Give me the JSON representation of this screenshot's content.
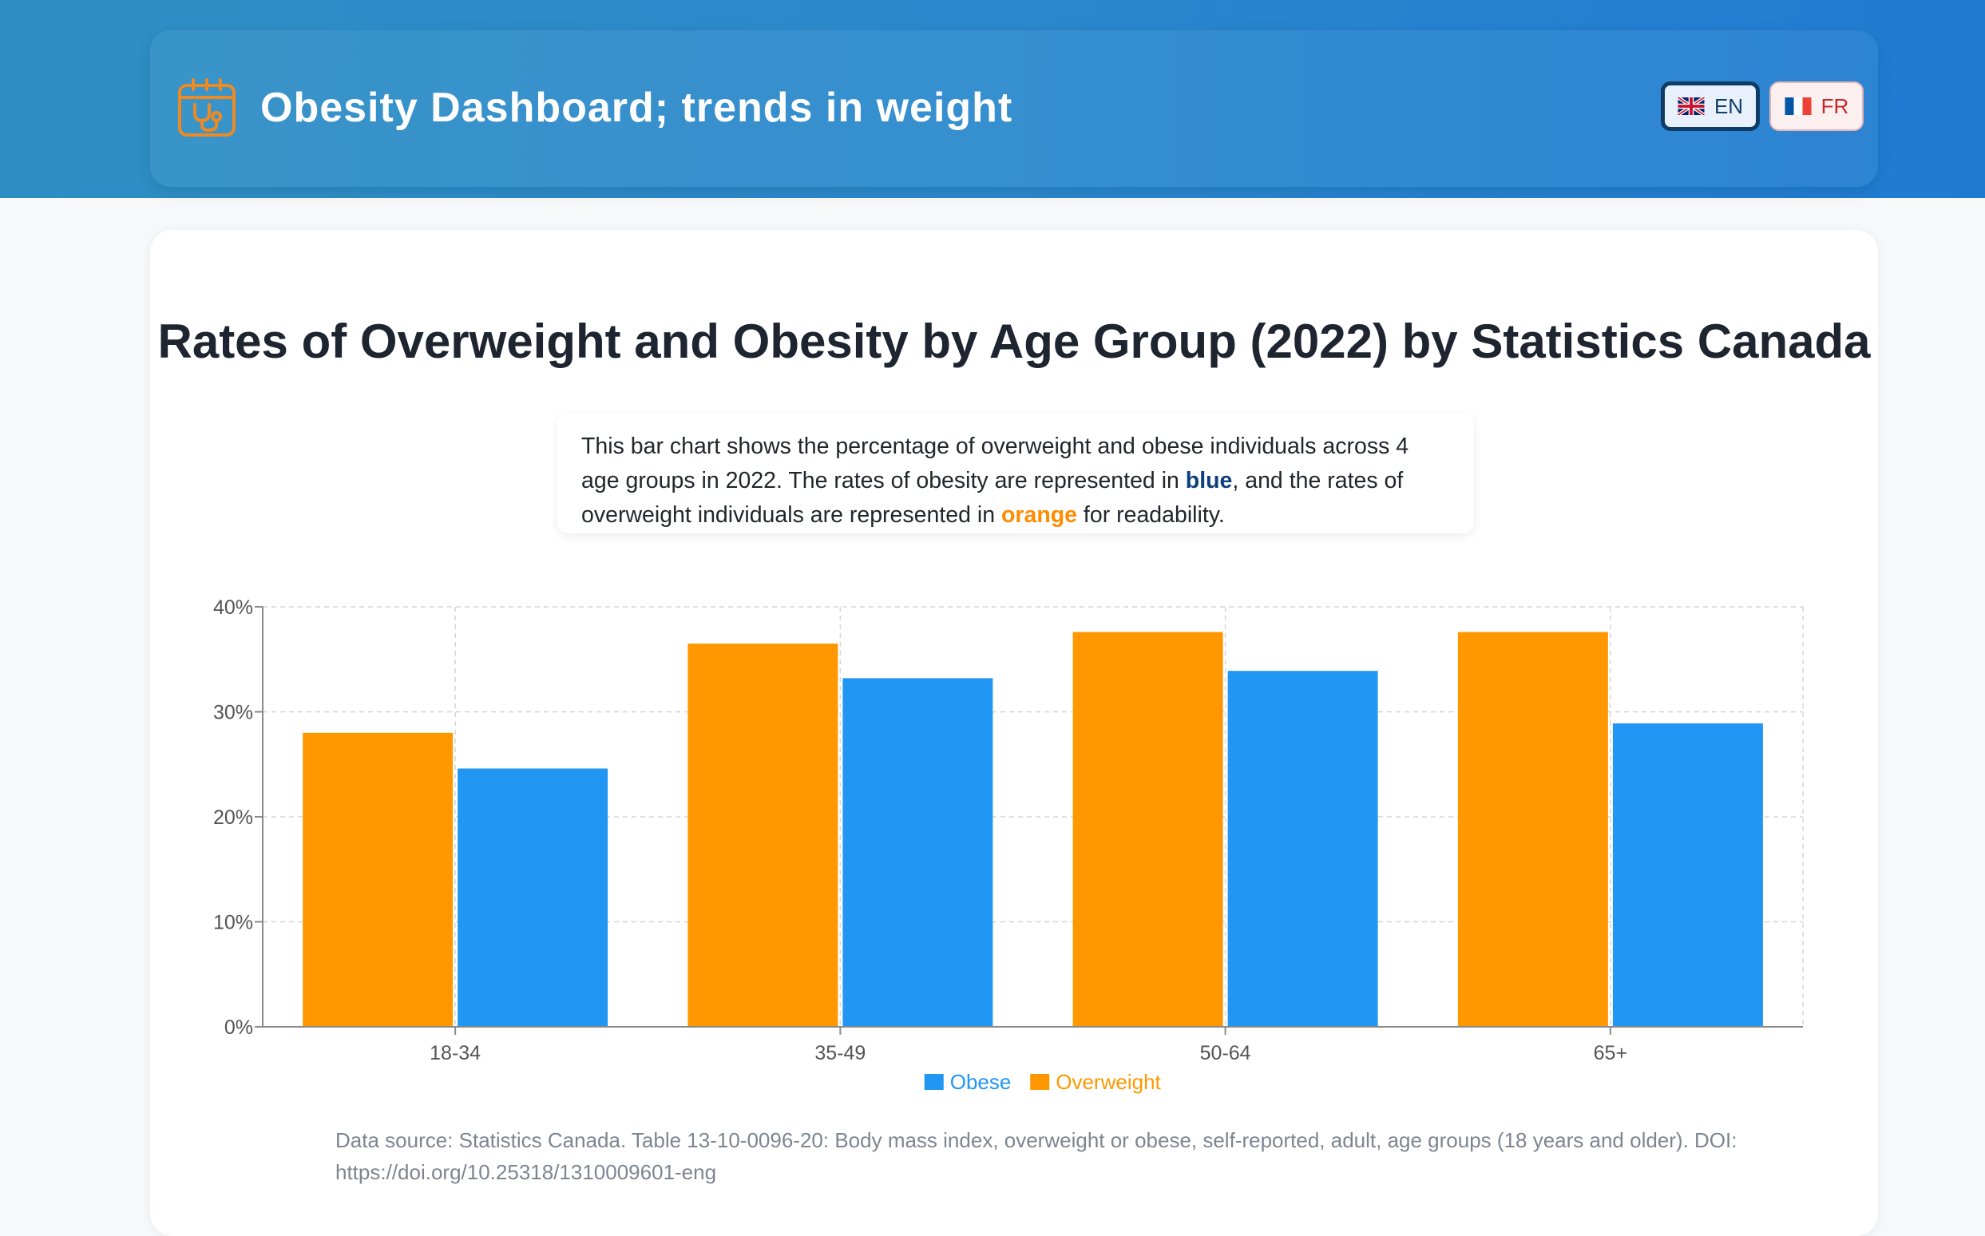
{
  "header": {
    "title": "Obesity Dashboard; trends in weight",
    "logo_icon": "calendar-stethoscope-icon",
    "languages": [
      {
        "code": "EN",
        "flag": "uk-flag-icon",
        "active": true
      },
      {
        "code": "FR",
        "flag": "france-flag-icon",
        "active": false
      }
    ]
  },
  "content": {
    "title": "Rates of Overweight and Obesity by Age Group (2022) by Statistics Canada",
    "description": {
      "part1": "This bar chart shows the percentage of overweight and obese individuals across 4 age groups in 2022. The rates of obesity are represented in ",
      "blue_word": "blue",
      "part2": ", and the rates of overweight individuals are represented in ",
      "orange_word": "orange",
      "part3": " for readability."
    },
    "source": "Data source: Statistics Canada. Table 13-10-0096-20: Body mass index, overweight or obese, self-reported, adult, age groups (18 years and older). DOI: https://doi.org/10.25318/1310009601-eng"
  },
  "colors": {
    "obese": "#2196f3",
    "overweight": "#ff9800",
    "grid": "#d5d5d5",
    "axis": "#8a8a8a",
    "tick_text": "#555555"
  },
  "chart_data": {
    "type": "bar",
    "title": "Rates of Overweight and Obesity by Age Group (2022) by Statistics Canada",
    "xlabel": "",
    "ylabel": "",
    "categories": [
      "18-34",
      "35-49",
      "50-64",
      "65+"
    ],
    "series": [
      {
        "name": "Overweight",
        "color": "#ff9800",
        "values": [
          28.0,
          36.5,
          37.6,
          37.6
        ]
      },
      {
        "name": "Obese",
        "color": "#2196f3",
        "values": [
          24.6,
          33.2,
          33.9,
          28.9
        ]
      }
    ],
    "legend": [
      {
        "name": "Obese",
        "color": "#2196f3"
      },
      {
        "name": "Overweight",
        "color": "#ff9800"
      }
    ],
    "legend_position": "bottom-center",
    "ylim": [
      0,
      40
    ],
    "yticks": [
      0,
      10,
      20,
      30,
      40
    ],
    "ytick_suffix": "%",
    "grid": true
  }
}
